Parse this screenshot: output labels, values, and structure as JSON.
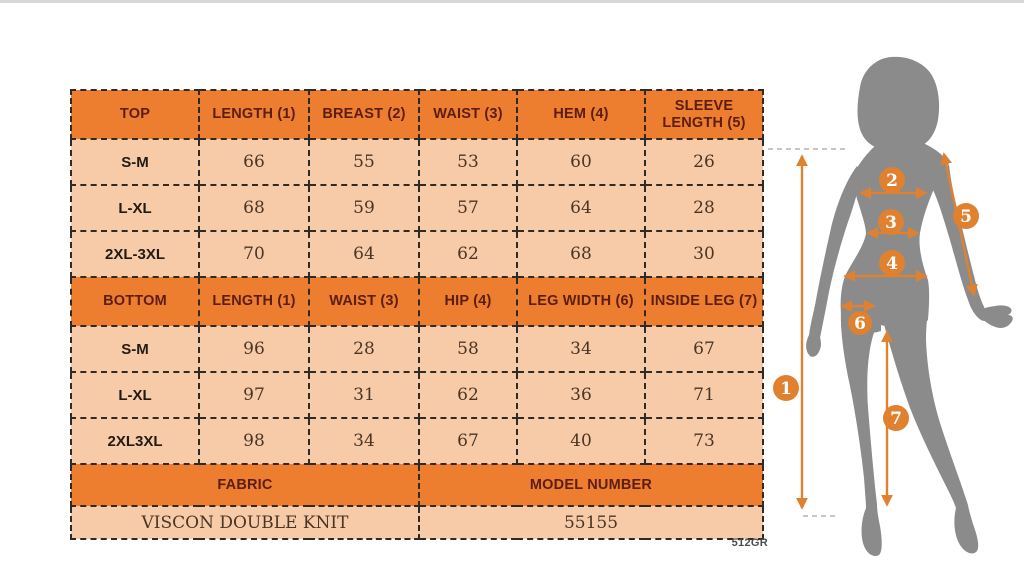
{
  "page": {
    "style_code": "512GR"
  },
  "colors": {
    "header_fill": "#ED7D2F",
    "cell_fill": "#F8CBA8",
    "header_text": "#5C1D12",
    "value_text": "#4A3525",
    "accent_orange": "#E0812F",
    "silhouette_gray": "#8B8B8B"
  },
  "size_table": {
    "sections": [
      {
        "header": [
          "TOP",
          "LENGTH (1)",
          "BREAST (2)",
          "WAIST (3)",
          "HEM (4)",
          "SLEEVE LENGTH (5)"
        ],
        "rows": [
          [
            "S-M",
            "66",
            "55",
            "53",
            "60",
            "26"
          ],
          [
            "L-XL",
            "68",
            "59",
            "57",
            "64",
            "28"
          ],
          [
            "2XL-3XL",
            "70",
            "64",
            "62",
            "68",
            "30"
          ]
        ]
      },
      {
        "header": [
          "BOTTOM",
          "LENGTH (1)",
          "WAIST (3)",
          "HIP (4)",
          "LEG WIDTH (6)",
          "INSIDE LEG (7)"
        ],
        "rows": [
          [
            "S-M",
            "96",
            "28",
            "58",
            "34",
            "67"
          ],
          [
            "L-XL",
            "97",
            "31",
            "62",
            "36",
            "71"
          ],
          [
            "2XL3XL",
            "98",
            "34",
            "67",
            "40",
            "73"
          ]
        ]
      }
    ],
    "footer_header": [
      "FABRIC",
      "MODEL NUMBER"
    ],
    "footer_values": [
      "VISCON DOUBLE KNIT",
      "55155"
    ]
  },
  "figure": {
    "markers": [
      {
        "label": "1"
      },
      {
        "label": "2"
      },
      {
        "label": "3"
      },
      {
        "label": "4"
      },
      {
        "label": "5"
      },
      {
        "label": "6"
      },
      {
        "label": "7"
      }
    ]
  }
}
